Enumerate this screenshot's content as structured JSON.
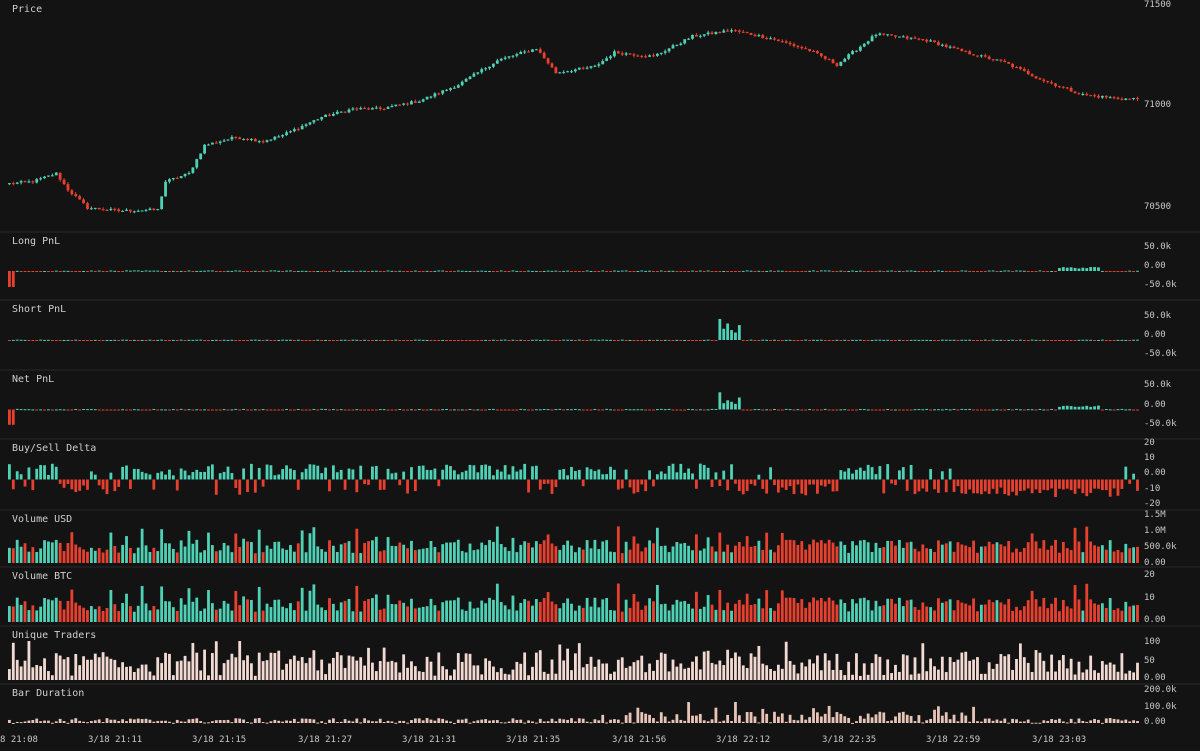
{
  "colors": {
    "background": "#131313",
    "divider": "#2a2a2a",
    "up": "#4fd1b5",
    "down": "#e8402f",
    "traders": "#f2d9d2",
    "duration": "#e8c4b6"
  },
  "chart_data": {
    "type": "candlestick-multi-panel",
    "x_ticks": [
      "8 21:08",
      "3/18 21:11",
      "3/18 21:15",
      "3/18 21:27",
      "3/18 21:31",
      "3/18 21:35",
      "3/18 21:56",
      "3/18 22:12",
      "3/18 22:35",
      "3/18 22:59",
      "3/18 23:03"
    ],
    "panels": [
      {
        "id": "price",
        "title": "Price",
        "ticks": [
          "71500",
          "71000",
          "70500"
        ],
        "range": [
          70350,
          71500
        ]
      },
      {
        "id": "long_pnl",
        "title": "Long PnL",
        "ticks": [
          "50.0k",
          "0.00",
          "-50.0k"
        ],
        "range": [
          -50000,
          50000
        ]
      },
      {
        "id": "short_pnl",
        "title": "Short PnL",
        "ticks": [
          "50.0k",
          "0.00",
          "-50.0k"
        ],
        "range": [
          -50000,
          50000
        ]
      },
      {
        "id": "net_pnl",
        "title": "Net PnL",
        "ticks": [
          "50.0k",
          "0.00",
          "-50.0k"
        ],
        "range": [
          -50000,
          50000
        ]
      },
      {
        "id": "delta",
        "title": "Buy/Sell Delta",
        "ticks": [
          "20",
          "10",
          "0.00",
          "-10",
          "-20"
        ],
        "range": [
          -20,
          20
        ]
      },
      {
        "id": "vol_usd",
        "title": "Volume USD",
        "ticks": [
          "1.5M",
          "1.0M",
          "500.0k",
          "0.00"
        ],
        "range": [
          0,
          1500000
        ]
      },
      {
        "id": "vol_btc",
        "title": "Volume BTC",
        "ticks": [
          "20",
          "10",
          "0.00"
        ],
        "range": [
          0,
          20
        ]
      },
      {
        "id": "traders",
        "title": "Unique Traders",
        "ticks": [
          "100",
          "50",
          "0.00"
        ],
        "range": [
          0,
          100
        ]
      },
      {
        "id": "duration",
        "title": "Bar Duration",
        "ticks": [
          "200.0k",
          "100.0k",
          "0.00"
        ],
        "range": [
          0,
          200000
        ]
      }
    ],
    "price_path": [
      [
        0,
        70590
      ],
      [
        6,
        70600
      ],
      [
        12,
        70640
      ],
      [
        15,
        70560
      ],
      [
        20,
        70470
      ],
      [
        28,
        70455
      ],
      [
        38,
        70460
      ],
      [
        40,
        70600
      ],
      [
        46,
        70640
      ],
      [
        50,
        70780
      ],
      [
        58,
        70820
      ],
      [
        65,
        70800
      ],
      [
        70,
        70830
      ],
      [
        80,
        70920
      ],
      [
        88,
        70960
      ],
      [
        95,
        70960
      ],
      [
        105,
        71000
      ],
      [
        115,
        71080
      ],
      [
        125,
        71200
      ],
      [
        135,
        71260
      ],
      [
        140,
        71140
      ],
      [
        150,
        71170
      ],
      [
        155,
        71240
      ],
      [
        165,
        71220
      ],
      [
        175,
        71320
      ],
      [
        185,
        71350
      ],
      [
        195,
        71310
      ],
      [
        205,
        71250
      ],
      [
        212,
        71180
      ],
      [
        222,
        71330
      ],
      [
        235,
        71300
      ],
      [
        245,
        71240
      ],
      [
        255,
        71190
      ],
      [
        265,
        71100
      ],
      [
        275,
        71030
      ],
      [
        285,
        71010
      ]
    ]
  }
}
